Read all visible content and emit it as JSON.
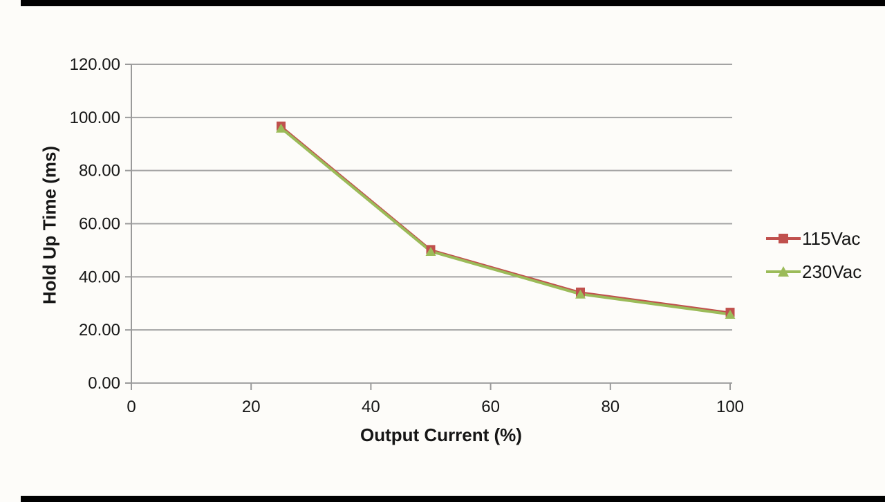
{
  "chart_data": {
    "type": "line",
    "title": "",
    "xlabel": "Output Current (%)",
    "ylabel": "Hold Up Time (ms)",
    "x": [
      25,
      50,
      75,
      100
    ],
    "series": [
      {
        "name": "115Vac",
        "color": "#c0504d",
        "marker": "square",
        "values": [
          96.5,
          50.0,
          34.0,
          26.4
        ]
      },
      {
        "name": "230Vac",
        "color": "#9bbb59",
        "marker": "triangle",
        "values": [
          96.0,
          49.6,
          33.5,
          25.9
        ]
      }
    ],
    "xlim": [
      0,
      100
    ],
    "ylim": [
      0,
      120
    ],
    "x_tick_labels": [
      "0",
      "20",
      "40",
      "60",
      "80",
      "100"
    ],
    "x_tick_values": [
      0,
      20,
      40,
      60,
      80,
      100
    ],
    "y_tick_labels": [
      "0.00",
      "20.00",
      "40.00",
      "60.00",
      "80.00",
      "100.00",
      "120.00"
    ],
    "y_tick_values": [
      0,
      20,
      40,
      60,
      80,
      100,
      120
    ],
    "grid": true,
    "legend_position": "right"
  },
  "colors": {
    "background": "#fdfcf9",
    "gridline": "#a3a3a3",
    "axis": "#9a9a9a",
    "text": "#161616",
    "border_bars": "#010101"
  }
}
